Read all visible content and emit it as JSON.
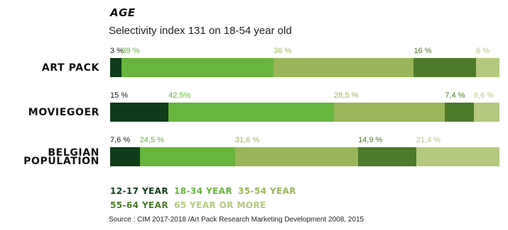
{
  "title": "AGE",
  "subtitle": "Selectivity index 131 on 18-54 year old",
  "source": "Source : CIM 2017-2018 /Art Pack Research Marketing Development 2008, 2015",
  "colors": [
    "#0f3d1a",
    "#67b53d",
    "#9ab65a",
    "#4d7a2b",
    "#b4c97f"
  ],
  "label_colors": [
    "#0f3d1a",
    "#67b53d",
    "#9ab65a",
    "#4d7a2b",
    "#b4c97f"
  ],
  "chart_data": {
    "type": "bar",
    "orientation": "horizontal-stacked-100",
    "categories": [
      "ART PACK",
      "MOVIEGOER",
      "BELGIAN POPULATION"
    ],
    "category_lines": [
      [
        "ART PACK"
      ],
      [
        "MOVIEGOER"
      ],
      [
        "BELGIAN",
        "POPULATION"
      ]
    ],
    "series": [
      {
        "name": "12-17 YEAR",
        "values": [
          3,
          15,
          7.6
        ],
        "labels": [
          "3 %",
          "15 %",
          "7,6 %"
        ]
      },
      {
        "name": "18-34 YEAR",
        "values": [
          39,
          42.5,
          24.5
        ],
        "labels": [
          "39 %",
          "42,5%",
          "24,5 %"
        ]
      },
      {
        "name": "35-54 YEAR",
        "values": [
          36,
          28.5,
          31.6
        ],
        "labels": [
          "36 %",
          "28,5 %",
          "31,6 %"
        ]
      },
      {
        "name": "55-64 YEAR",
        "values": [
          16,
          7.4,
          14.9
        ],
        "labels": [
          "16 %",
          "7,4 %",
          "14,9 %"
        ]
      },
      {
        "name": "65 YEAR OR MORE",
        "values": [
          6,
          6.6,
          21.4
        ],
        "labels": [
          "6 %",
          "6,6 %",
          "21,4 %"
        ]
      }
    ],
    "legend_rows": [
      [
        0,
        1,
        2
      ],
      [
        3,
        4
      ]
    ],
    "legend_position": "bottom-left",
    "grid": false
  }
}
